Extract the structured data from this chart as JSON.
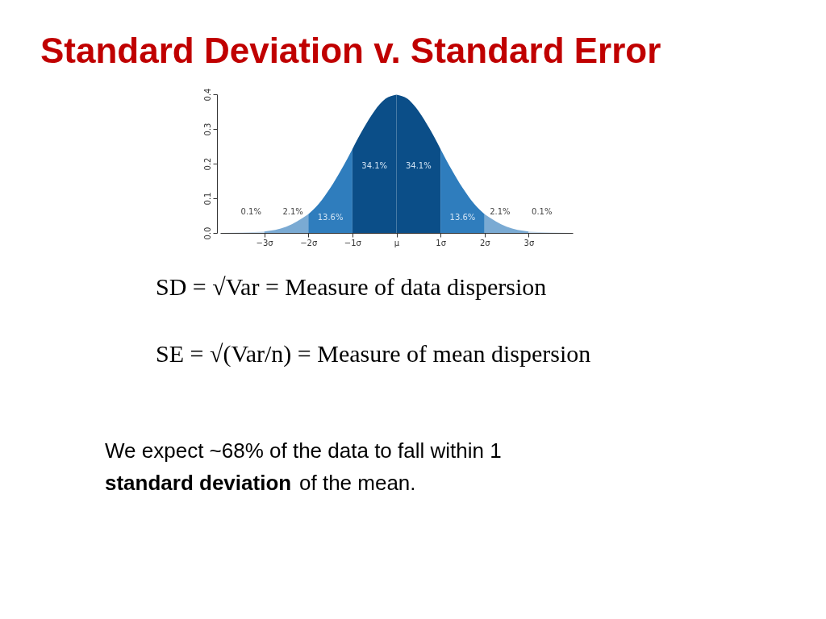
{
  "chart_data": {
    "type": "area",
    "title": "Standard Deviation v. Standard Error",
    "xlim": [
      -4,
      4
    ],
    "ylim": [
      0,
      0.4
    ],
    "xticks": [
      {
        "value": -3,
        "label": "−3σ"
      },
      {
        "value": -2,
        "label": "−2σ"
      },
      {
        "value": -1,
        "label": "−1σ"
      },
      {
        "value": 0,
        "label": "μ"
      },
      {
        "value": 1,
        "label": "1σ"
      },
      {
        "value": 2,
        "label": "2σ"
      },
      {
        "value": 3,
        "label": "3σ"
      }
    ],
    "yticks": [
      {
        "value": 0,
        "label": "0.0"
      },
      {
        "value": 0.1,
        "label": "0.1"
      },
      {
        "value": 0.2,
        "label": "0.2"
      },
      {
        "value": 0.3,
        "label": "0.3"
      },
      {
        "value": 0.4,
        "label": "0.4"
      }
    ],
    "series": [
      {
        "color": "#c9dcee",
        "x": [
          -4,
          -3.5,
          -3
        ],
        "values": [
          0.0,
          0.001,
          0.004
        ]
      },
      {
        "color": "#7aaad3",
        "x": [
          -3,
          -2.5,
          -2
        ],
        "values": [
          0.004,
          0.018,
          0.054
        ]
      },
      {
        "color": "#2f7dbd",
        "x": [
          -2,
          -1.75,
          -1.5,
          -1.25,
          -1
        ],
        "values": [
          0.054,
          0.086,
          0.13,
          0.183,
          0.242
        ]
      },
      {
        "color": "#0b4e88",
        "x": [
          -1,
          -0.75,
          -0.5,
          -0.25,
          0
        ],
        "values": [
          0.242,
          0.301,
          0.352,
          0.387,
          0.399
        ]
      },
      {
        "color": "#0b4e88",
        "x": [
          0,
          0.25,
          0.5,
          0.75,
          1
        ],
        "values": [
          0.399,
          0.387,
          0.352,
          0.301,
          0.242
        ]
      },
      {
        "color": "#2f7dbd",
        "x": [
          1,
          1.25,
          1.5,
          1.75,
          2
        ],
        "values": [
          0.242,
          0.183,
          0.13,
          0.086,
          0.054
        ]
      },
      {
        "color": "#7aaad3",
        "x": [
          2,
          2.5,
          3
        ],
        "values": [
          0.054,
          0.018,
          0.004
        ]
      },
      {
        "color": "#c9dcee",
        "x": [
          3,
          3.5,
          4
        ],
        "values": [
          0.004,
          0.001,
          0.0
        ]
      }
    ],
    "annotations": [
      "0.1%",
      "2.1%",
      "13.6%",
      "34.1%",
      "34.1%",
      "13.6%",
      "2.1%",
      "0.1%",
      "SD = √Var = Measure of data dispersion",
      "SE = √(Var/n) = Measure of mean dispersion",
      "We expect ~68% of the data to fall within 1",
      "standard deviation",
      "of the mean."
    ],
    "grid": false
  }
}
